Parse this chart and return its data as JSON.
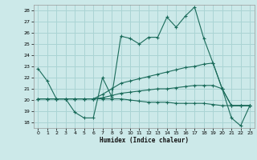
{
  "title": "",
  "xlabel": "Humidex (Indice chaleur)",
  "xlim": [
    -0.5,
    23.5
  ],
  "ylim": [
    17.5,
    28.5
  ],
  "yticks": [
    18,
    19,
    20,
    21,
    22,
    23,
    24,
    25,
    26,
    27,
    28
  ],
  "xticks": [
    0,
    1,
    2,
    3,
    4,
    5,
    6,
    7,
    8,
    9,
    10,
    11,
    12,
    13,
    14,
    15,
    16,
    17,
    18,
    19,
    20,
    21,
    22,
    23
  ],
  "bg_color": "#cce9e9",
  "grid_color": "#aad4d4",
  "line_color": "#1a6b5a",
  "line1_x": [
    0,
    1,
    2,
    3,
    4,
    5,
    6,
    7,
    8,
    9,
    10,
    11,
    12,
    13,
    14,
    15,
    16,
    17,
    18,
    19,
    20,
    21,
    22,
    23
  ],
  "line1_y": [
    22.8,
    21.7,
    20.1,
    20.1,
    18.9,
    18.4,
    18.4,
    22.0,
    20.3,
    25.7,
    25.5,
    25.0,
    25.6,
    25.6,
    27.4,
    26.5,
    27.5,
    28.3,
    25.5,
    23.3,
    21.0,
    18.4,
    17.7,
    19.5
  ],
  "line2_x": [
    0,
    1,
    2,
    3,
    4,
    5,
    6,
    7,
    8,
    9,
    10,
    11,
    12,
    13,
    14,
    15,
    16,
    17,
    18,
    19,
    20,
    21,
    22,
    23
  ],
  "line2_y": [
    20.1,
    20.1,
    20.1,
    20.1,
    20.1,
    20.1,
    20.1,
    20.5,
    21.0,
    21.5,
    21.7,
    21.9,
    22.1,
    22.3,
    22.5,
    22.7,
    22.9,
    23.0,
    23.2,
    23.3,
    21.0,
    19.5,
    19.5,
    19.5
  ],
  "line3_x": [
    0,
    1,
    2,
    3,
    4,
    5,
    6,
    7,
    8,
    9,
    10,
    11,
    12,
    13,
    14,
    15,
    16,
    17,
    18,
    19,
    20,
    21,
    22,
    23
  ],
  "line3_y": [
    20.1,
    20.1,
    20.1,
    20.1,
    20.1,
    20.1,
    20.1,
    20.2,
    20.4,
    20.6,
    20.7,
    20.8,
    20.9,
    21.0,
    21.0,
    21.1,
    21.2,
    21.3,
    21.3,
    21.3,
    21.0,
    19.5,
    19.5,
    19.5
  ],
  "line4_x": [
    0,
    1,
    2,
    3,
    4,
    5,
    6,
    7,
    8,
    9,
    10,
    11,
    12,
    13,
    14,
    15,
    16,
    17,
    18,
    19,
    20,
    21,
    22,
    23
  ],
  "line4_y": [
    20.1,
    20.1,
    20.1,
    20.1,
    20.1,
    20.1,
    20.1,
    20.1,
    20.1,
    20.1,
    20.0,
    19.9,
    19.8,
    19.8,
    19.8,
    19.7,
    19.7,
    19.7,
    19.7,
    19.6,
    19.5,
    19.5,
    19.5,
    19.5
  ]
}
